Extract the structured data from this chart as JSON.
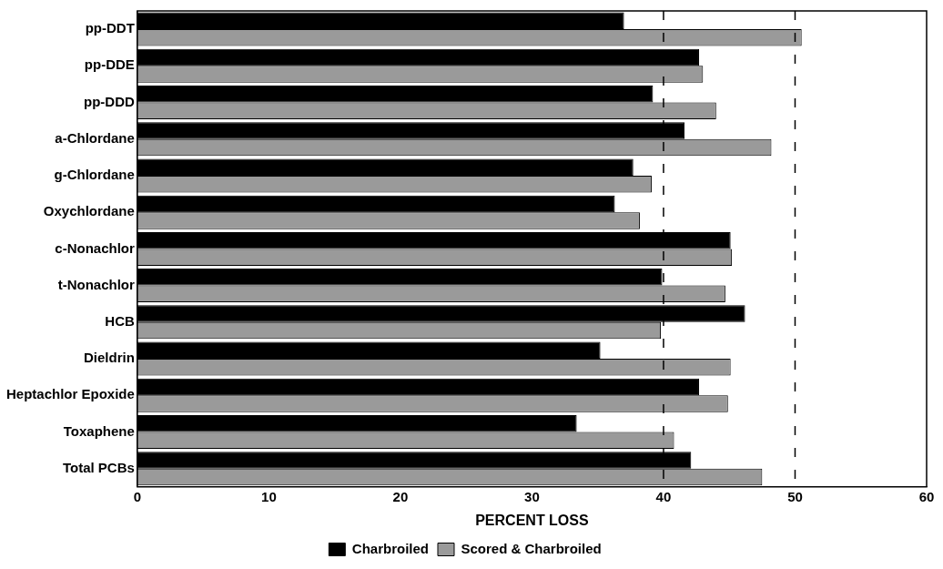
{
  "chart_data": {
    "type": "bar",
    "orientation": "horizontal",
    "xlabel": "PERCENT LOSS",
    "categories": [
      "pp-DDT",
      "pp-DDE",
      "pp-DDD",
      "a-Chlordane",
      "g-Chlordane",
      "Oxychlordane",
      "c-Nonachlor",
      "t-Nonachlor",
      "HCB",
      "Dieldrin",
      "Heptachlor Epoxide",
      "Toxaphene",
      "Total PCBs"
    ],
    "series": [
      {
        "name": "Charbroiled",
        "color": "#000000",
        "values": [
          37.0,
          42.7,
          39.2,
          41.6,
          37.7,
          36.3,
          45.1,
          39.9,
          46.2,
          35.2,
          42.7,
          33.4,
          42.1
        ]
      },
      {
        "name": "Scored & Charbroiled",
        "color": "#9a9a9a",
        "values": [
          50.5,
          43.0,
          44.0,
          48.2,
          39.1,
          38.2,
          45.2,
          44.7,
          39.8,
          45.1,
          44.9,
          40.8,
          47.5
        ]
      }
    ],
    "xlim": [
      0,
      60
    ],
    "xticks": [
      0,
      10,
      20,
      30,
      40,
      50,
      60
    ],
    "ref_lines": [
      {
        "axis": "x",
        "value": 40,
        "line_style": "dashed",
        "color": "#000000"
      },
      {
        "axis": "x",
        "value": 50,
        "line_style": "dashed",
        "color": "#000000"
      }
    ],
    "grid": false,
    "legend": "bottom"
  }
}
